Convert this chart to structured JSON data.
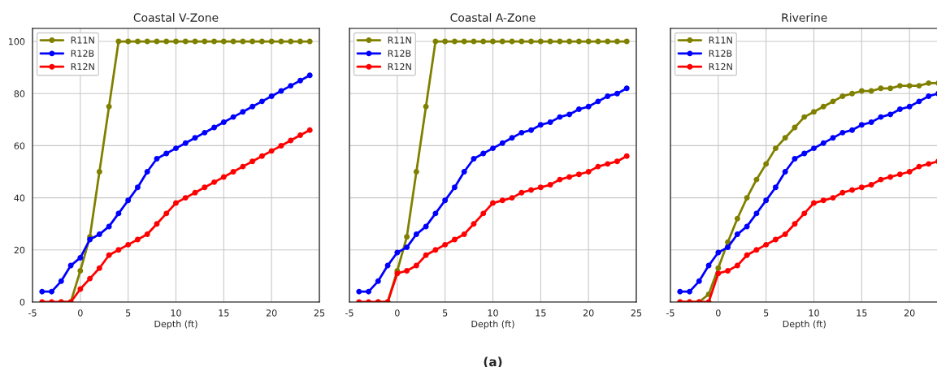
{
  "chart_data": [
    {
      "type": "line",
      "title": "Coastal V-Zone",
      "xlabel": "Depth (ft)",
      "x": [
        -4,
        -3,
        -2,
        -1,
        0,
        1,
        2,
        3,
        4,
        5,
        6,
        7,
        8,
        9,
        10,
        11,
        12,
        13,
        14,
        15,
        16,
        17,
        18,
        19,
        20,
        21,
        22,
        23,
        24
      ],
      "xlim": [
        -5,
        25
      ],
      "xticks": [
        -5,
        0,
        5,
        10,
        15,
        20,
        25
      ],
      "ylim": [
        0,
        105
      ],
      "yticks": [
        0,
        20,
        40,
        60,
        80,
        100
      ],
      "grid": true,
      "legend": "top left",
      "marker": "circle",
      "line_style": "solid",
      "series": [
        {
          "name": "R11N",
          "color": "#808000",
          "values": [
            null,
            null,
            0,
            0,
            12,
            25,
            50,
            75,
            100,
            100,
            100,
            100,
            100,
            100,
            100,
            100,
            100,
            100,
            100,
            100,
            100,
            100,
            100,
            100,
            100,
            100,
            100,
            100,
            100
          ]
        },
        {
          "name": "R12B",
          "color": "#0000ff",
          "values": [
            4,
            4,
            8,
            14,
            17,
            24,
            26,
            29,
            34,
            39,
            44,
            50,
            55,
            57,
            59,
            61,
            63,
            65,
            67,
            69,
            71,
            73,
            75,
            77,
            79,
            81,
            83,
            85,
            87
          ]
        },
        {
          "name": "R12N",
          "color": "#ff0000",
          "values": [
            0,
            0,
            0,
            0,
            5,
            9,
            13,
            18,
            20,
            22,
            24,
            26,
            30,
            34,
            38,
            40,
            42,
            44,
            46,
            48,
            50,
            52,
            54,
            56,
            58,
            60,
            62,
            64,
            66
          ]
        }
      ]
    },
    {
      "type": "line",
      "title": "Coastal A-Zone",
      "xlabel": "Depth (ft)",
      "x": [
        -4,
        -3,
        -2,
        -1,
        0,
        1,
        2,
        3,
        4,
        5,
        6,
        7,
        8,
        9,
        10,
        11,
        12,
        13,
        14,
        15,
        16,
        17,
        18,
        19,
        20,
        21,
        22,
        23,
        24
      ],
      "xlim": [
        -5,
        25
      ],
      "xticks": [
        -5,
        0,
        5,
        10,
        15,
        20,
        25
      ],
      "ylim": [
        0,
        105
      ],
      "yticks": [
        0,
        20,
        40,
        60,
        80,
        100
      ],
      "tick_labels": "x",
      "grid": true,
      "legend": "top left",
      "marker": "circle",
      "line_style": "solid",
      "annotations": [
        "(a)"
      ],
      "series": [
        {
          "name": "R11N",
          "color": "#808000",
          "values": [
            null,
            null,
            0,
            0,
            12,
            25,
            50,
            75,
            100,
            100,
            100,
            100,
            100,
            100,
            100,
            100,
            100,
            100,
            100,
            100,
            100,
            100,
            100,
            100,
            100,
            100,
            100,
            100,
            100
          ]
        },
        {
          "name": "R12B",
          "color": "#0000ff",
          "values": [
            4,
            4,
            8,
            14,
            19,
            21,
            26,
            29,
            34,
            39,
            44,
            50,
            55,
            57,
            59,
            61,
            63,
            65,
            66,
            68,
            69,
            71,
            72,
            74,
            75,
            77,
            79,
            80,
            82
          ]
        },
        {
          "name": "R12N",
          "color": "#ff0000",
          "values": [
            0,
            0,
            0,
            0,
            11,
            12,
            14,
            18,
            20,
            22,
            24,
            26,
            30,
            34,
            38,
            39,
            40,
            42,
            43,
            44,
            45,
            47,
            48,
            49,
            50,
            52,
            53,
            54,
            56
          ]
        }
      ]
    },
    {
      "type": "line",
      "title": "Riverine",
      "xlabel": "Depth (ft)",
      "x": [
        -4,
        -3,
        -2,
        -1,
        0,
        1,
        2,
        3,
        4,
        5,
        6,
        7,
        8,
        9,
        10,
        11,
        12,
        13,
        14,
        15,
        16,
        17,
        18,
        19,
        20,
        21,
        22,
        23
      ],
      "xlim": [
        -5,
        23
      ],
      "xticks": [
        -5,
        0,
        5,
        10,
        15,
        20
      ],
      "ylim": [
        0,
        105
      ],
      "yticks": [
        0,
        20,
        40,
        60,
        80,
        100
      ],
      "tick_labels": "x",
      "grid": true,
      "legend": "top left",
      "marker": "circle",
      "line_style": "solid",
      "series": [
        {
          "name": "R11N",
          "color": "#808000",
          "values": [
            0,
            0,
            0,
            3,
            13,
            23,
            32,
            40,
            47,
            53,
            59,
            63,
            67,
            71,
            73,
            75,
            77,
            79,
            80,
            81,
            81,
            82,
            82,
            83,
            83,
            83,
            84,
            84
          ]
        },
        {
          "name": "R12B",
          "color": "#0000ff",
          "values": [
            4,
            4,
            8,
            14,
            19,
            21,
            26,
            29,
            34,
            39,
            44,
            50,
            55,
            57,
            59,
            61,
            63,
            65,
            66,
            68,
            69,
            71,
            72,
            74,
            75,
            77,
            79,
            80
          ]
        },
        {
          "name": "R12N",
          "color": "#ff0000",
          "values": [
            0,
            0,
            0,
            0,
            11,
            12,
            14,
            18,
            20,
            22,
            24,
            26,
            30,
            34,
            38,
            39,
            40,
            42,
            43,
            44,
            45,
            47,
            48,
            49,
            50,
            52,
            53,
            54
          ]
        }
      ]
    }
  ]
}
